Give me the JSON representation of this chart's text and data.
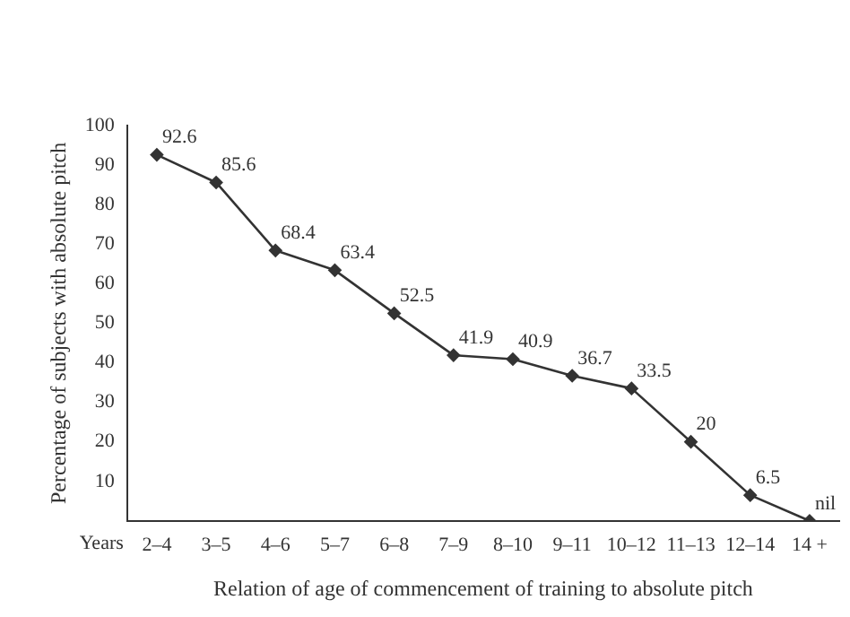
{
  "chart_data": {
    "type": "line",
    "xlabel": "Relation of age of commencement of training to absolute pitch",
    "ylabel": "Percentage of subjects with absolute pitch",
    "categories": [
      "2–4",
      "3–5",
      "4–6",
      "5–7",
      "6–8",
      "7–9",
      "8–10",
      "9–11",
      "10–12",
      "11–13",
      "12–14",
      "14 +"
    ],
    "series": [
      {
        "color": "#333333",
        "values": [
          92.6,
          85.6,
          68.4,
          63.4,
          52.5,
          41.9,
          40.9,
          36.7,
          33.5,
          20,
          6.5,
          0
        ],
        "value_labels": [
          "92.6",
          "85.6",
          "68.4",
          "63.4",
          "52.5",
          "41.9",
          "40.9",
          "36.7",
          "33.5",
          "20",
          "6.5",
          "nil"
        ]
      }
    ],
    "ylim": [
      0,
      100
    ],
    "yticks": [
      10,
      20,
      30,
      40,
      50,
      60,
      70,
      80,
      90,
      100
    ],
    "grid": false,
    "legend": false,
    "marker": "diamond",
    "line_style": "solid",
    "annotations": [
      "Years"
    ]
  }
}
